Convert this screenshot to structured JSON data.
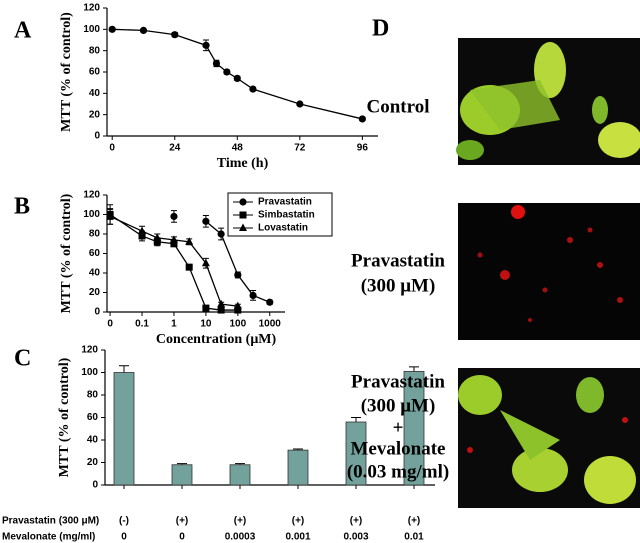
{
  "chart_data": [
    {
      "panel": "A",
      "type": "line",
      "ylabel": "MTT (% of control)",
      "xlabel": "Time (h)",
      "x": [
        0,
        12,
        24,
        36,
        40,
        44,
        48,
        54,
        72,
        96
      ],
      "series": [
        {
          "color": "#000000",
          "marker": "circle",
          "values": [
            100,
            99,
            95,
            85,
            68,
            60,
            54,
            44,
            30,
            16
          ],
          "errors": [
            0,
            1,
            2,
            5,
            3,
            2,
            2,
            1,
            1,
            1
          ]
        }
      ],
      "xlim": [
        -2,
        102
      ],
      "xticks": [
        0,
        24,
        48,
        72,
        96
      ],
      "ylim": [
        0,
        120
      ],
      "yticks": [
        0,
        20,
        40,
        60,
        80,
        100,
        120
      ]
    },
    {
      "panel": "B",
      "type": "line",
      "ylabel": "MTT (% of control)",
      "xlabel": "Concentration (μM)",
      "xscale": "log",
      "legend": "upper right",
      "x": [
        0.01,
        0.1,
        0.3,
        1,
        3,
        10,
        30,
        100,
        300,
        1000
      ],
      "series": [
        {
          "name": "Pravastatin",
          "color": "#000000",
          "marker": "circle",
          "values": [
            100,
            null,
            null,
            98,
            null,
            93,
            80,
            38,
            17,
            10
          ],
          "errors": [
            10,
            null,
            null,
            6,
            null,
            6,
            6,
            3,
            5,
            2
          ]
        },
        {
          "name": "Simbastatin",
          "color": "#000000",
          "marker": "square",
          "values": [
            100,
            78,
            72,
            70,
            46,
            4,
            2,
            2,
            null,
            null
          ],
          "errors": [
            5,
            5,
            4,
            3,
            2,
            1,
            1,
            1,
            null,
            null
          ]
        },
        {
          "name": "Lovastatin",
          "color": "#000000",
          "marker": "triangle",
          "values": [
            98,
            83,
            76,
            74,
            72,
            50,
            8,
            6,
            null,
            null
          ],
          "errors": [
            8,
            5,
            4,
            3,
            3,
            5,
            2,
            2,
            null,
            null
          ]
        }
      ],
      "xlim": [
        0.008,
        3000
      ],
      "xticks": [
        {
          "value": 0.01,
          "label": "0"
        },
        0.1,
        1,
        10,
        100,
        1000
      ],
      "ylim": [
        0,
        120
      ],
      "yticks": [
        0,
        20,
        40,
        60,
        80,
        100,
        120
      ]
    },
    {
      "panel": "C",
      "type": "bar",
      "ylabel": "MTT (% of control)",
      "color": "#73a19c",
      "values": [
        100,
        18,
        18,
        31,
        56,
        101
      ],
      "errors": [
        6,
        1,
        1,
        1,
        4,
        4
      ],
      "rows": [
        {
          "label": "Pravastatin (300 μM)",
          "values": [
            "(-)",
            "(+)",
            "(+)",
            "(+)",
            "(+)",
            "(+)"
          ]
        },
        {
          "label": "Mevalonate (mg/ml)",
          "values": [
            "0",
            "0",
            "0.0003",
            "0.001",
            "0.003",
            "0.01"
          ]
        }
      ],
      "ylim": [
        0,
        120
      ],
      "yticks": [
        0,
        20,
        40,
        60,
        80,
        100,
        120
      ]
    }
  ],
  "panel_d": {
    "label": "D",
    "captions": [
      [
        "Control"
      ],
      [
        "Pravastatin",
        "(300 μM)"
      ],
      [
        "Pravastatin",
        "(300 μM)",
        "+",
        "Mevalonate",
        "(0.03 mg/ml)"
      ]
    ]
  }
}
